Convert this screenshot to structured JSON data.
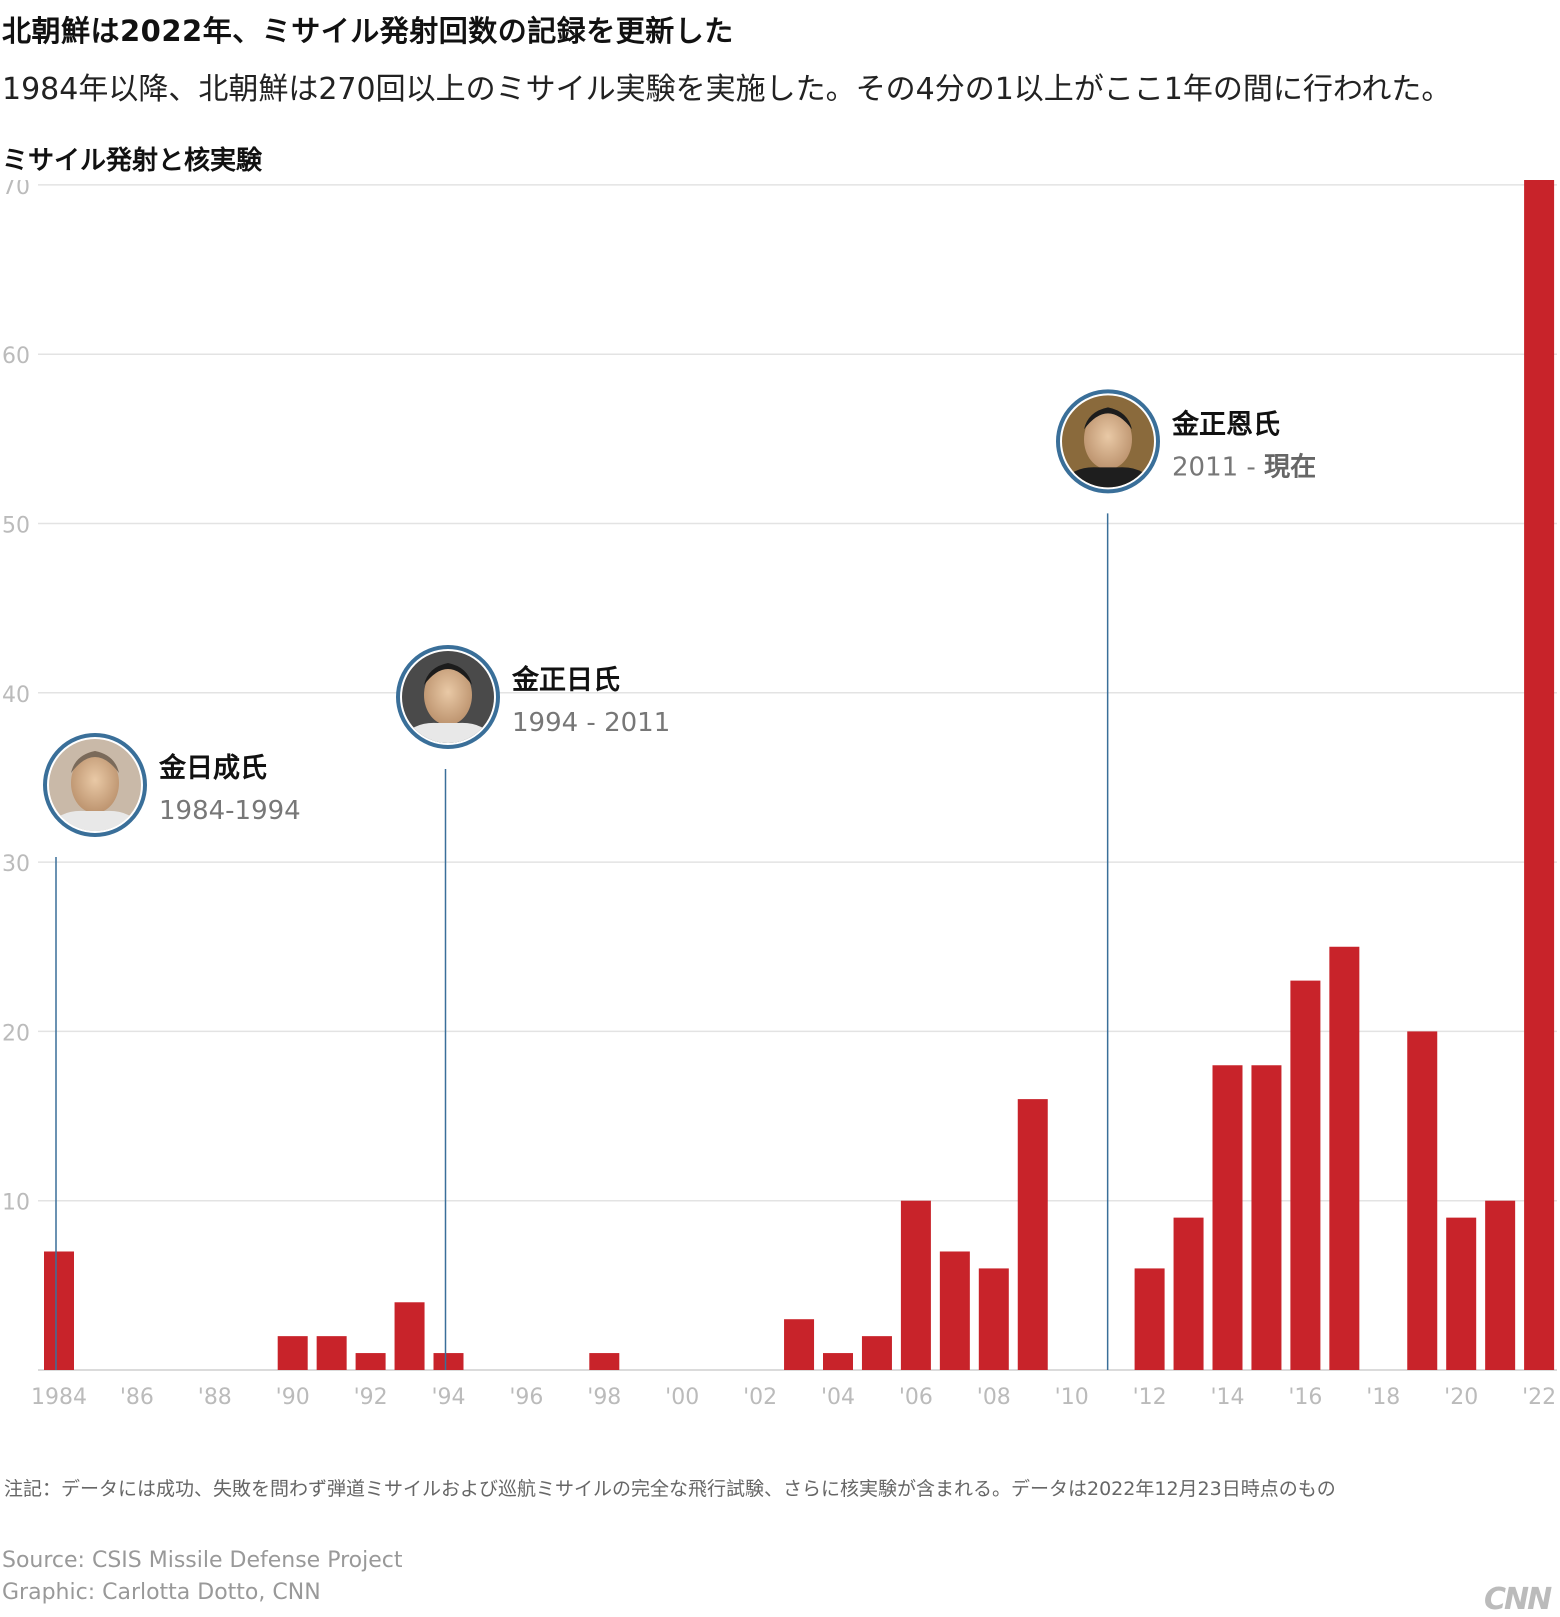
{
  "title": "北朝鮮は2022年、ミサイル発射回数の記録を更新した",
  "subtitle": "1984年以降、北朝鮮は270回以上のミサイル実験を実施した。その4分の1以上がここ1年の間に行われた。",
  "chart_heading": "ミサイル発射と核実験",
  "note": "注記：データには成功、失敗を問わず弾道ミサイルおよび巡航ミサイルの完全な飛行試験、さらに核実験が含まれる。データは2022年12月23日時点のもの",
  "source": "Source: CSIS Missile Defense Project",
  "graphic_credit": "Graphic: Carlotta Dotto, CNN",
  "logo": "CNN",
  "colors": {
    "bar": "#c8232a",
    "leader_line": "#3a6f99",
    "grid": "#e3e3e3",
    "tick": "#bbbbbb"
  },
  "chart_data": {
    "type": "bar",
    "x": [
      1984,
      1985,
      1986,
      1987,
      1988,
      1989,
      1990,
      1991,
      1992,
      1993,
      1994,
      1995,
      1996,
      1997,
      1998,
      1999,
      2000,
      2001,
      2002,
      2003,
      2004,
      2005,
      2006,
      2007,
      2008,
      2009,
      2010,
      2011,
      2012,
      2013,
      2014,
      2015,
      2016,
      2017,
      2018,
      2019,
      2020,
      2021,
      2022
    ],
    "values": [
      7,
      0,
      0,
      0,
      0,
      0,
      2,
      2,
      1,
      4,
      1,
      0,
      0,
      0,
      1,
      0,
      0,
      0,
      0,
      3,
      1,
      2,
      10,
      7,
      6,
      16,
      0,
      0,
      6,
      9,
      18,
      18,
      23,
      25,
      0,
      20,
      9,
      10,
      71
    ],
    "x_tick_labels": [
      "1984",
      "'86",
      "'88",
      "'90",
      "'92",
      "'94",
      "'96",
      "'98",
      "'00",
      "'02",
      "'04",
      "'06",
      "'08",
      "'10",
      "'12",
      "'14",
      "'16",
      "'18",
      "'20",
      "'22"
    ],
    "y_ticks": [
      10,
      20,
      30,
      40,
      50,
      60,
      70
    ],
    "ylim": [
      0,
      72
    ],
    "grid": true,
    "annotations": [
      {
        "year": 1984,
        "line_top": 30.3,
        "name": "金日成氏",
        "period": "1984-1994",
        "portrait": "kim-il-sung"
      },
      {
        "year": 1994,
        "line_top": 35.5,
        "name": "金正日氏",
        "period": "1994 - 2011",
        "portrait": "kim-jong-il"
      },
      {
        "year": 2011,
        "line_top": 50.6,
        "name": "金正恩氏",
        "period_start": "2011 - ",
        "period_end": "現在",
        "portrait": "kim-jong-un"
      }
    ]
  }
}
